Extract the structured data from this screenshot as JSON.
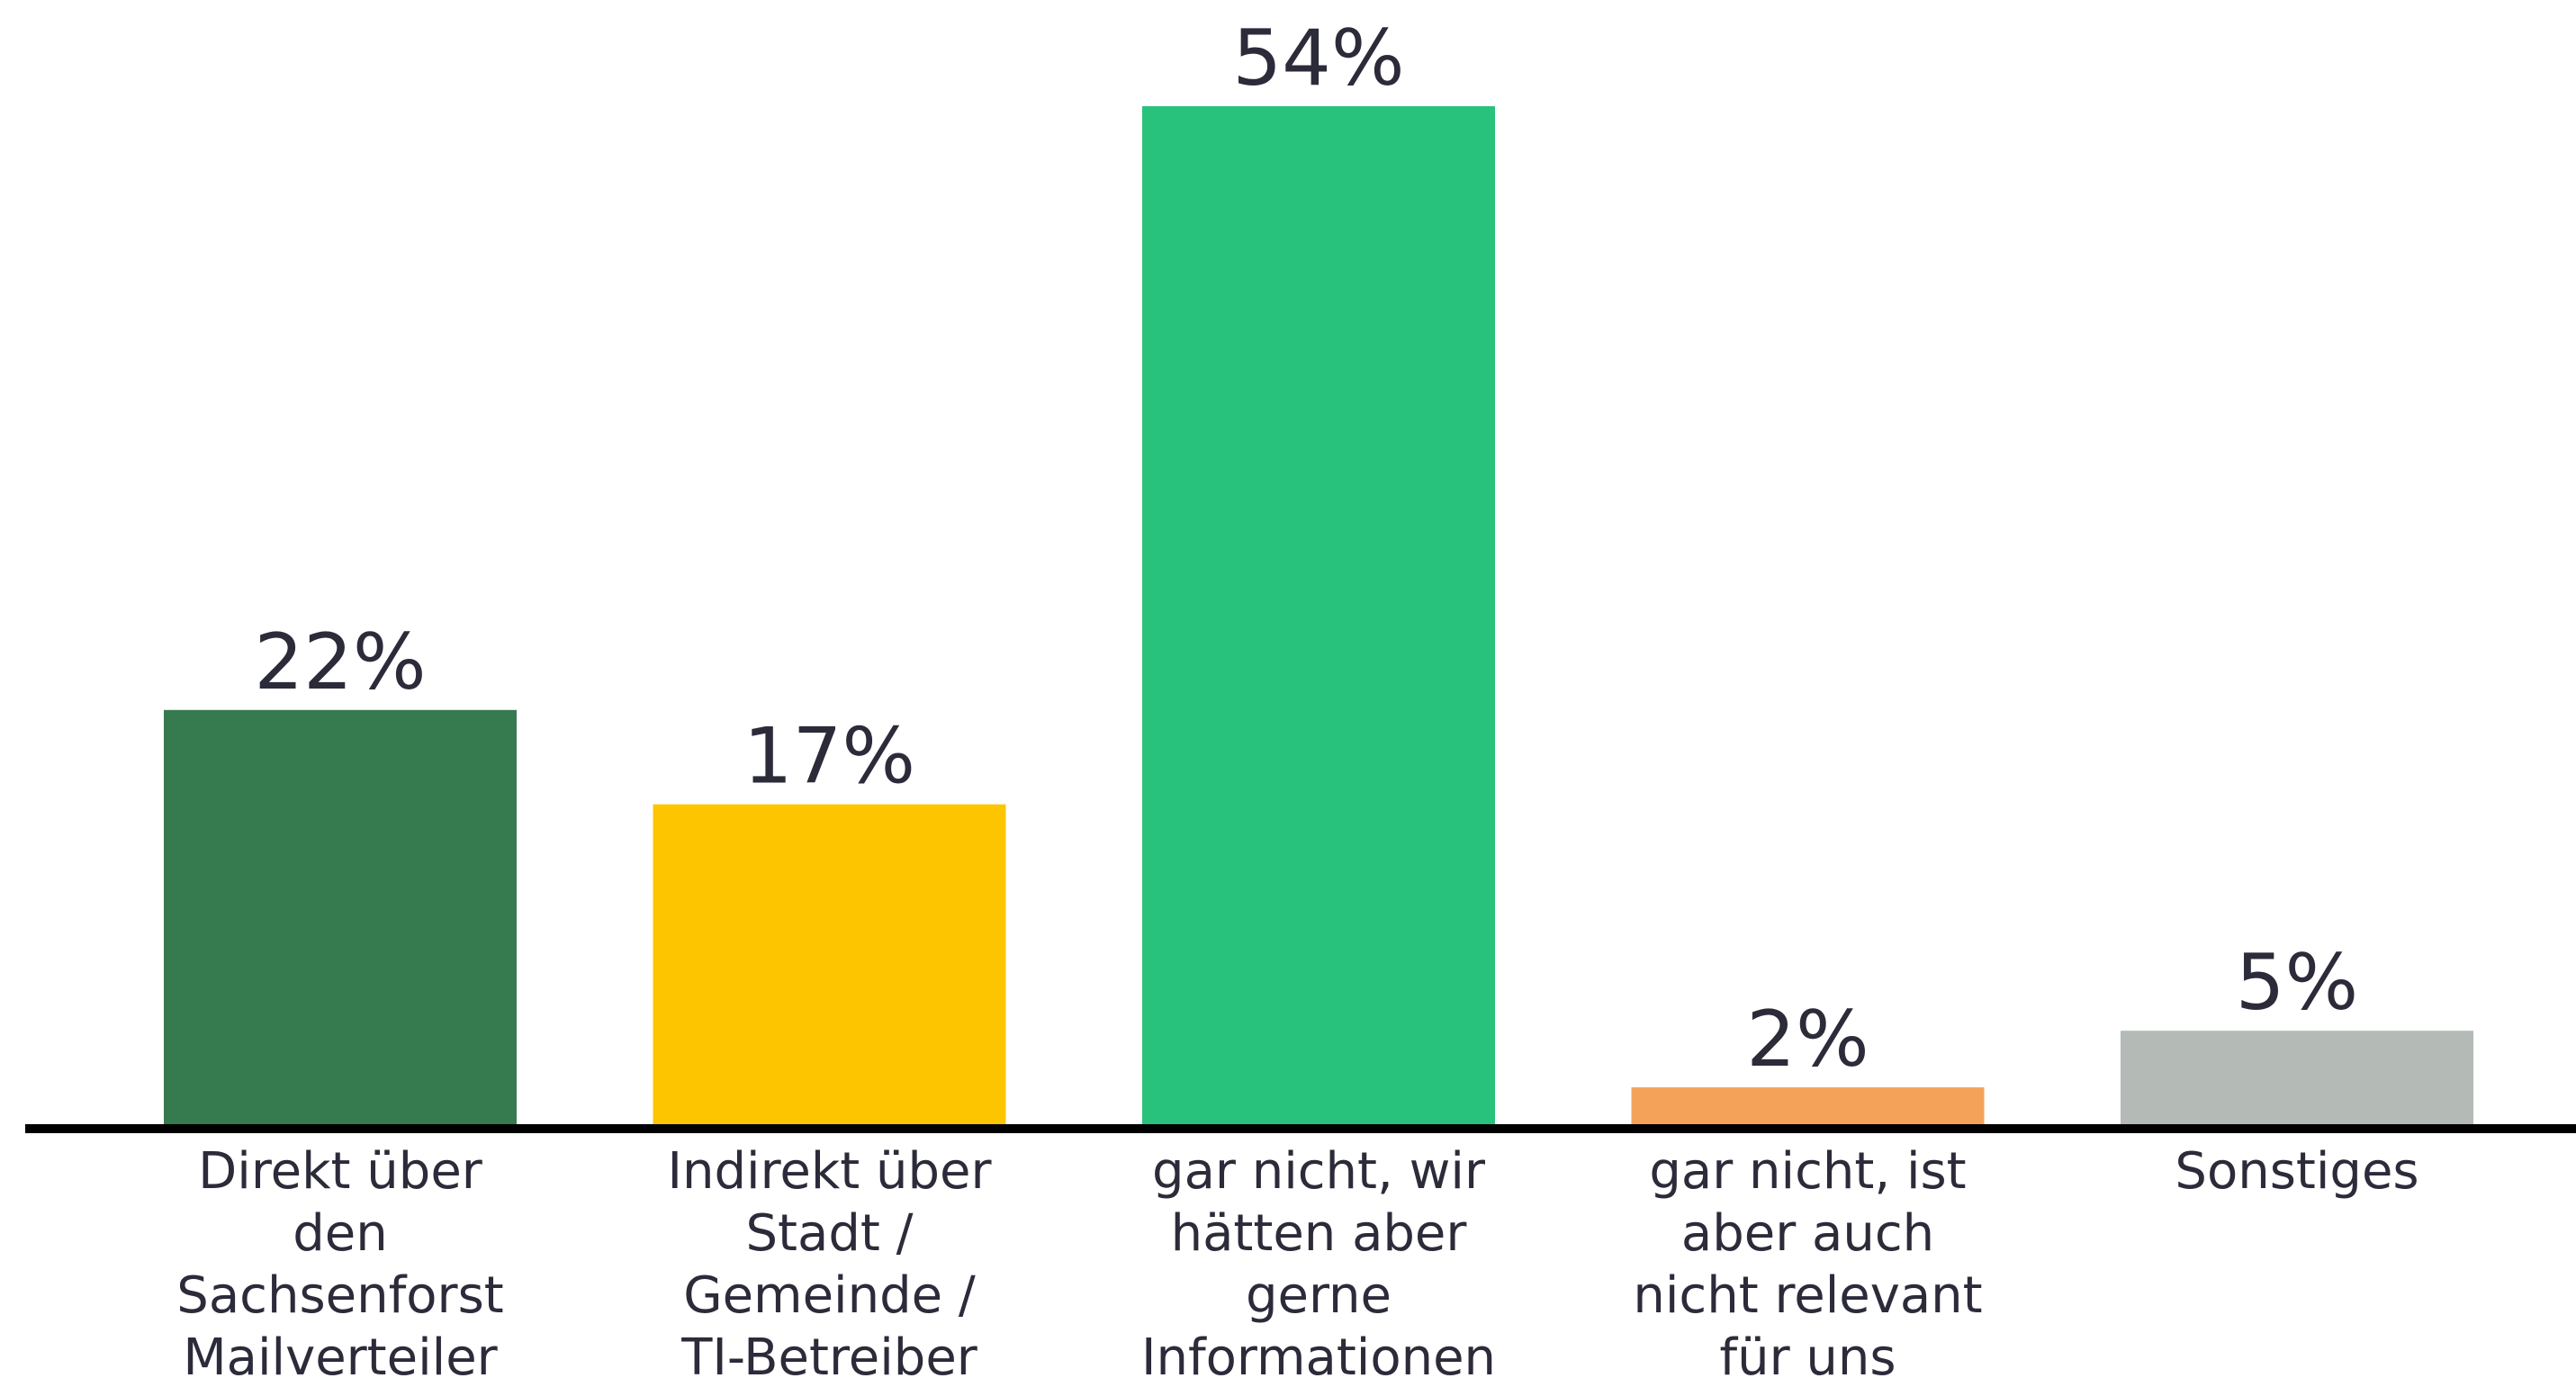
{
  "chart_data": {
    "type": "bar",
    "categories": [
      [
        "Direkt über",
        "den",
        "Sachsenforst",
        "Mailverteiler"
      ],
      [
        "Indirekt über",
        "Stadt /",
        "Gemeinde /",
        "TI-Betreiber"
      ],
      [
        "gar nicht, wir",
        "hätten aber",
        "gerne",
        "Informationen"
      ],
      [
        "gar nicht, ist",
        "aber auch",
        "nicht relevant",
        "für uns"
      ],
      [
        "Sonstiges"
      ]
    ],
    "values": [
      22,
      17,
      54,
      2,
      5
    ],
    "value_labels": [
      "22%",
      "17%",
      "54%",
      "2%",
      "5%"
    ],
    "colors": [
      "#367a4f",
      "#fcc500",
      "#28c27d",
      "#f4a25a",
      "#b4bab6"
    ],
    "axis_color": "#000000",
    "ylim": [
      0,
      54
    ],
    "grid": false
  }
}
